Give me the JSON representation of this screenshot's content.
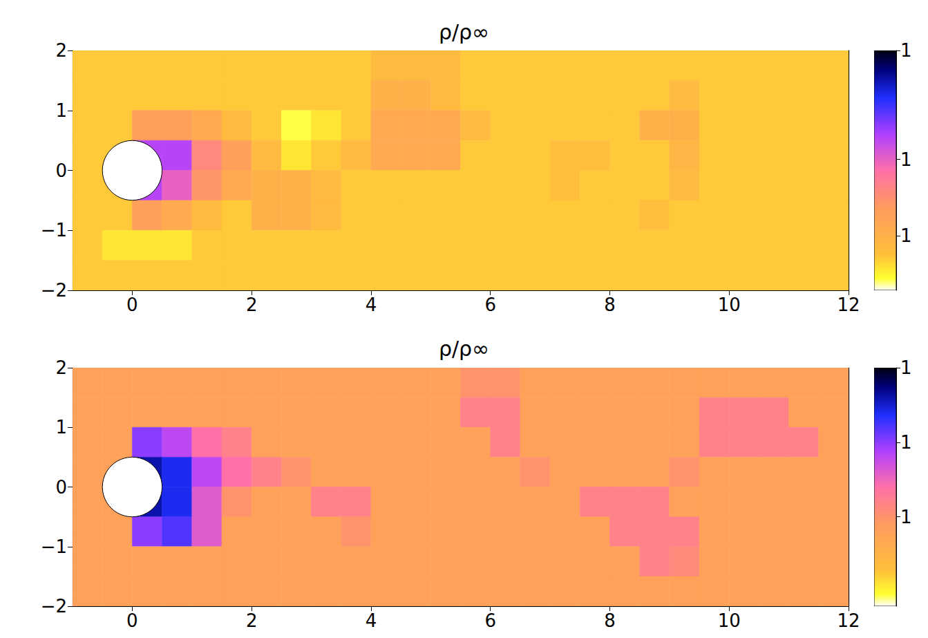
{
  "chart_data": [
    {
      "type": "heatmap",
      "title": "ρ/ρ∞",
      "xlim": [
        -1,
        12
      ],
      "xticks": [
        0,
        2,
        4,
        6,
        8,
        10,
        12
      ],
      "ylim": [
        -2,
        2
      ],
      "yticks": [
        {
          "value": -2,
          "label": "−2"
        },
        {
          "value": -1,
          "label": "−1"
        },
        0,
        1,
        2
      ],
      "grid": false,
      "x_edges": [
        -1,
        -0.5,
        0,
        0.5,
        1,
        1.5,
        2,
        2.5,
        3,
        3.5,
        4,
        4.5,
        5,
        5.5,
        6,
        6.5,
        7,
        7.5,
        8,
        8.5,
        9,
        9.5,
        10,
        10.5,
        11,
        11.5,
        12
      ],
      "y_edges": [
        2,
        1.5,
        1,
        0.5,
        0,
        -0.5,
        -1,
        -1.5,
        -2
      ],
      "z": [
        [
          1.01,
          1.01,
          1.01,
          1.01,
          1.01,
          1.01,
          1.01,
          1.01,
          1.01,
          1.01,
          1.02,
          1.02,
          1.02,
          1.01,
          1.01,
          1.01,
          1.01,
          1.01,
          1.01,
          1.01,
          1.01,
          1.01,
          1.01,
          1.01,
          1.01,
          1.01
        ],
        [
          1.01,
          1.01,
          1.01,
          1.01,
          1.01,
          1.01,
          1.01,
          1.01,
          1.01,
          1.01,
          1.03,
          1.03,
          1.02,
          1.01,
          1.01,
          1.01,
          1.01,
          1.01,
          1.01,
          1.01,
          1.02,
          1.01,
          1.01,
          1.01,
          1.01,
          1.01
        ],
        [
          1.01,
          1.01,
          1.05,
          1.05,
          1.04,
          1.02,
          1.01,
          0.99,
          1.0,
          1.01,
          1.04,
          1.04,
          1.04,
          1.02,
          1.01,
          1.01,
          1.01,
          1.01,
          1.01,
          1.03,
          1.03,
          1.01,
          1.01,
          1.01,
          1.01,
          1.01
        ],
        [
          1.01,
          1.01,
          1.12,
          1.12,
          1.07,
          1.05,
          1.02,
          1.0,
          1.01,
          1.02,
          1.04,
          1.04,
          1.04,
          1.01,
          1.01,
          1.01,
          1.015,
          1.015,
          1.01,
          1.01,
          1.025,
          1.01,
          1.01,
          1.01,
          1.01,
          1.01
        ],
        [
          1.01,
          1.01,
          1.12,
          1.1,
          1.06,
          1.04,
          1.03,
          1.03,
          1.02,
          1.01,
          1.01,
          1.01,
          1.01,
          1.01,
          1.01,
          1.01,
          1.015,
          1.01,
          1.01,
          1.01,
          1.02,
          1.01,
          1.01,
          1.01,
          1.01,
          1.01
        ],
        [
          1.01,
          1.01,
          1.05,
          1.04,
          1.02,
          1.01,
          1.03,
          1.03,
          1.02,
          1.01,
          1.01,
          1.01,
          1.01,
          1.01,
          1.01,
          1.01,
          1.01,
          1.01,
          1.01,
          1.015,
          1.01,
          1.01,
          1.01,
          1.01,
          1.01,
          1.01
        ],
        [
          1.01,
          1.0,
          1.0,
          1.0,
          1.01,
          1.01,
          1.01,
          1.01,
          1.01,
          1.01,
          1.01,
          1.01,
          1.01,
          1.01,
          1.01,
          1.01,
          1.01,
          1.01,
          1.01,
          1.01,
          1.01,
          1.01,
          1.01,
          1.01,
          1.01,
          1.01
        ],
        [
          1.01,
          1.01,
          1.01,
          1.01,
          1.01,
          1.01,
          1.01,
          1.01,
          1.01,
          1.01,
          1.01,
          1.01,
          1.01,
          1.01,
          1.01,
          1.01,
          1.01,
          1.01,
          1.01,
          1.01,
          1.01,
          1.01,
          1.01,
          1.01,
          1.01,
          1.01
        ]
      ],
      "colorbar": {
        "range": [
          0.98,
          1.2
        ],
        "ticks": [
          {
            "value": 1.03,
            "label": "1"
          },
          {
            "value": 1.1,
            "label": "1"
          },
          {
            "value": 1.2,
            "label": "1"
          }
        ]
      },
      "cylinder": {
        "center": [
          0,
          0
        ],
        "radius": 0.5
      }
    },
    {
      "type": "heatmap",
      "title": "ρ/ρ∞",
      "xlim": [
        -1,
        12
      ],
      "xticks": [
        0,
        2,
        4,
        6,
        8,
        10,
        12
      ],
      "ylim": [
        -2,
        2
      ],
      "yticks": [
        {
          "value": -2,
          "label": "−2"
        },
        {
          "value": -1,
          "label": "−1"
        },
        0,
        1,
        2
      ],
      "grid": false,
      "x_edges": [
        -1,
        -0.5,
        0,
        0.5,
        1,
        1.5,
        2,
        2.5,
        3,
        3.5,
        4,
        4.5,
        5,
        5.5,
        6,
        6.5,
        7,
        7.5,
        8,
        8.5,
        9,
        9.5,
        10,
        10.5,
        11,
        11.5,
        12
      ],
      "y_edges": [
        2,
        1.5,
        1,
        0.5,
        0,
        -0.5,
        -1,
        -1.5,
        -2
      ],
      "z": [
        [
          1.04,
          1.04,
          1.04,
          1.04,
          1.04,
          1.04,
          1.04,
          1.04,
          1.04,
          1.04,
          1.04,
          1.04,
          1.04,
          1.05,
          1.05,
          1.04,
          1.04,
          1.04,
          1.04,
          1.04,
          1.04,
          1.04,
          1.04,
          1.04,
          1.04,
          1.04
        ],
        [
          1.04,
          1.04,
          1.04,
          1.04,
          1.04,
          1.04,
          1.04,
          1.04,
          1.04,
          1.04,
          1.04,
          1.04,
          1.04,
          1.06,
          1.06,
          1.04,
          1.04,
          1.04,
          1.04,
          1.04,
          1.04,
          1.06,
          1.06,
          1.06,
          1.04,
          1.04
        ],
        [
          1.04,
          1.04,
          1.1,
          1.09,
          1.07,
          1.06,
          1.04,
          1.04,
          1.04,
          1.04,
          1.04,
          1.04,
          1.04,
          1.04,
          1.06,
          1.04,
          1.04,
          1.04,
          1.04,
          1.04,
          1.04,
          1.06,
          1.06,
          1.06,
          1.06,
          1.04
        ],
        [
          1.04,
          1.04,
          1.13,
          1.12,
          1.09,
          1.07,
          1.06,
          1.05,
          1.04,
          1.04,
          1.04,
          1.04,
          1.04,
          1.04,
          1.04,
          1.05,
          1.04,
          1.04,
          1.04,
          1.04,
          1.05,
          1.04,
          1.04,
          1.04,
          1.04,
          1.04
        ],
        [
          1.04,
          1.04,
          1.13,
          1.12,
          1.08,
          1.05,
          1.04,
          1.04,
          1.06,
          1.06,
          1.04,
          1.04,
          1.04,
          1.04,
          1.04,
          1.04,
          1.04,
          1.06,
          1.06,
          1.06,
          1.04,
          1.04,
          1.04,
          1.04,
          1.04,
          1.04
        ],
        [
          1.04,
          1.04,
          1.1,
          1.11,
          1.08,
          1.04,
          1.04,
          1.04,
          1.04,
          1.05,
          1.04,
          1.04,
          1.04,
          1.04,
          1.04,
          1.04,
          1.04,
          1.04,
          1.06,
          1.06,
          1.06,
          1.04,
          1.04,
          1.04,
          1.04,
          1.04
        ],
        [
          1.04,
          1.04,
          1.04,
          1.04,
          1.04,
          1.04,
          1.04,
          1.04,
          1.04,
          1.04,
          1.04,
          1.04,
          1.04,
          1.04,
          1.04,
          1.04,
          1.04,
          1.04,
          1.04,
          1.06,
          1.055,
          1.04,
          1.04,
          1.04,
          1.04,
          1.04
        ],
        [
          1.04,
          1.04,
          1.04,
          1.04,
          1.04,
          1.04,
          1.04,
          1.04,
          1.04,
          1.04,
          1.04,
          1.04,
          1.04,
          1.04,
          1.04,
          1.04,
          1.04,
          1.04,
          1.04,
          1.04,
          1.04,
          1.04,
          1.04,
          1.04,
          1.04,
          1.04
        ]
      ],
      "colorbar": {
        "range": [
          0.99,
          1.15
        ],
        "ticks": [
          {
            "value": 1.05,
            "label": "1"
          },
          {
            "value": 1.1,
            "label": "1"
          },
          {
            "value": 1.15,
            "label": "1"
          }
        ]
      },
      "cylinder": {
        "center": [
          0,
          0
        ],
        "radius": 0.5
      }
    }
  ]
}
